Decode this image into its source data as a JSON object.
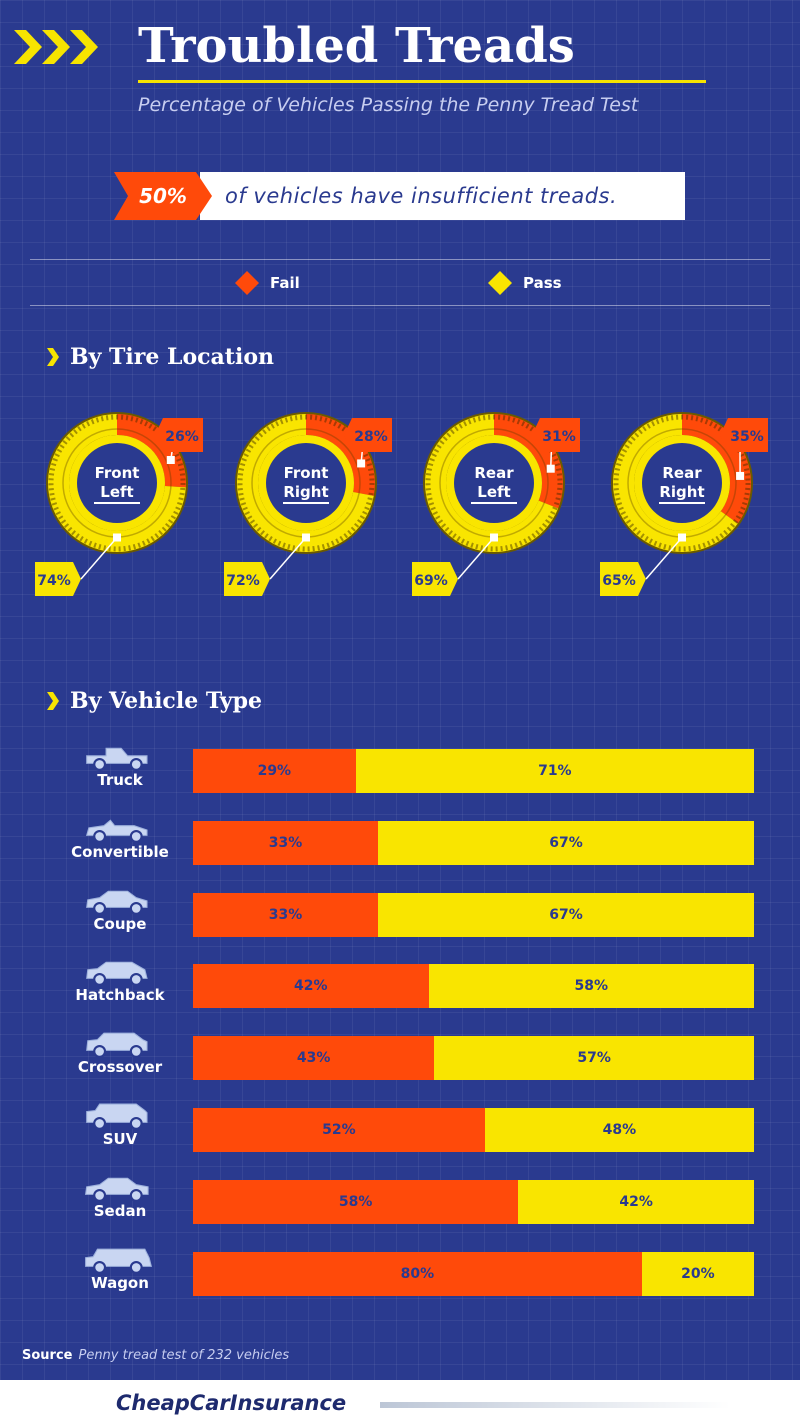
{
  "header": {
    "title": "Troubled Treads",
    "subtitle": "Percentage of Vehicles Passing the Penny Tread Test"
  },
  "banner": {
    "percent": "50%",
    "text": "of vehicles have insufficient treads."
  },
  "legend": [
    {
      "label": "Fail",
      "color": "#ff4a0a",
      "icon": "diamond-icon"
    },
    {
      "label": "Pass",
      "color": "#f9e500",
      "icon": "diamond-icon"
    }
  ],
  "sections": {
    "tire_location": "By Tire Location",
    "vehicle_type": "By Vehicle Type"
  },
  "source": {
    "label": "Source",
    "text": "Penny tread test of 232 vehicles"
  },
  "footer": {
    "brand": "CheapCarInsurance"
  },
  "colors": {
    "fail": "#ff4a0a",
    "pass": "#f9e500",
    "background": "#2a3a8f"
  },
  "chart_data": [
    {
      "type": "pie",
      "title": "By Tire Location",
      "tires": [
        {
          "line1": "Front",
          "line2": "Left",
          "fail": 26,
          "pass": 74,
          "fail_label": "26%",
          "pass_label": "74%"
        },
        {
          "line1": "Front",
          "line2": "Right",
          "fail": 28,
          "pass": 72,
          "fail_label": "28%",
          "pass_label": "72%"
        },
        {
          "line1": "Rear",
          "line2": "Left",
          "fail": 31,
          "pass": 69,
          "fail_label": "31%",
          "pass_label": "69%"
        },
        {
          "line1": "Rear",
          "line2": "Right",
          "fail": 35,
          "pass": 65,
          "fail_label": "35%",
          "pass_label": "65%"
        }
      ]
    },
    {
      "type": "bar",
      "title": "By Vehicle Type",
      "stacked": true,
      "horizontal": true,
      "categories": [
        "Truck",
        "Convertible",
        "Coupe",
        "Hatchback",
        "Crossover",
        "SUV",
        "Sedan",
        "Wagon"
      ],
      "icons": [
        "truck-icon",
        "convertible-icon",
        "coupe-icon",
        "hatchback-icon",
        "crossover-icon",
        "suv-icon",
        "sedan-icon",
        "wagon-icon"
      ],
      "series": [
        {
          "name": "Fail",
          "values": [
            29,
            33,
            33,
            42,
            43,
            52,
            58,
            80
          ],
          "labels": [
            "29%",
            "33%",
            "33%",
            "42%",
            "43%",
            "52%",
            "58%",
            "80%"
          ]
        },
        {
          "name": "Pass",
          "values": [
            71,
            67,
            67,
            58,
            57,
            48,
            42,
            20
          ],
          "labels": [
            "71%",
            "67%",
            "67%",
            "58%",
            "57%",
            "48%",
            "42%",
            "20%"
          ]
        }
      ],
      "xlim": [
        0,
        100
      ]
    }
  ]
}
